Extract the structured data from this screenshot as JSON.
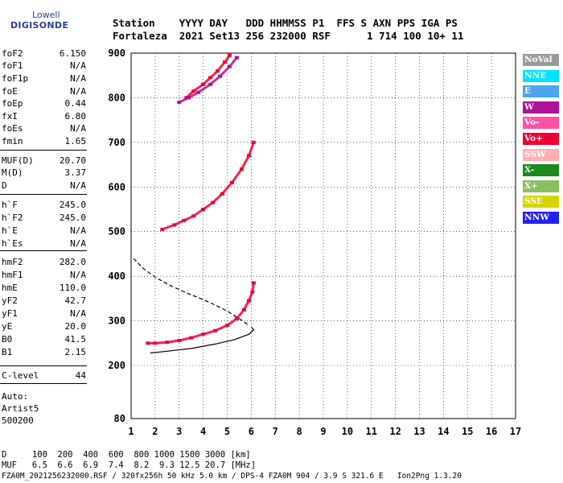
{
  "logo": {
    "line1": "Lowell",
    "line2": "DIGISONDE"
  },
  "header": {
    "keys": "Station    YYYY DAY   DDD HHMMSS P1  FFS S AXN PPS IGA PS",
    "values": "Fortaleza  2021 Set13 256 232000 RSF      1 714 100 10+ 11"
  },
  "params": [
    {
      "label": "foF2",
      "value": "6.150"
    },
    {
      "label": "foF1",
      "value": "N/A"
    },
    {
      "label": "foF1p",
      "value": "N/A"
    },
    {
      "label": "foE",
      "value": "N/A"
    },
    {
      "label": "foEp",
      "value": "0.44"
    },
    {
      "label": "fxI",
      "value": "6.80"
    },
    {
      "label": "foEs",
      "value": "N/A"
    },
    {
      "label": "fmin",
      "value": "1.65"
    },
    {
      "label": "MUF(D)",
      "value": "20.70"
    },
    {
      "label": "M(D)",
      "value": "3.37"
    },
    {
      "label": "D",
      "value": "N/A"
    },
    {
      "label": "h`F",
      "value": "245.0"
    },
    {
      "label": "h`F2",
      "value": "245.0"
    },
    {
      "label": "h`E",
      "value": "N/A"
    },
    {
      "label": "h`Es",
      "value": "N/A"
    },
    {
      "label": "hmF2",
      "value": "282.0"
    },
    {
      "label": "hmF1",
      "value": "N/A"
    },
    {
      "label": "hmE",
      "value": "110.0"
    },
    {
      "label": "yF2",
      "value": "42.7"
    },
    {
      "label": "yF1",
      "value": "N/A"
    },
    {
      "label": "yE",
      "value": "20.0"
    },
    {
      "label": "B0",
      "value": "41.5"
    },
    {
      "label": "B1",
      "value": "2.15"
    },
    {
      "label": "C-level",
      "value": "44"
    }
  ],
  "auto": {
    "line1": "Auto:",
    "line2": "Artist5",
    "line3": "500200"
  },
  "legend": [
    {
      "label": "NoVal",
      "color": "#9a9a9a",
      "text_color": "#ffffff"
    },
    {
      "label": "NNE",
      "color": "#00e5ff",
      "text_color": "#ffffff"
    },
    {
      "label": "E",
      "color": "#4aa6ee",
      "text_color": "#ffffff"
    },
    {
      "label": "W",
      "color": "#b0109a",
      "text_color": "#ffffff"
    },
    {
      "label": "Vo-",
      "color": "#ff4fa8",
      "text_color": "#ffffff"
    },
    {
      "label": "Vo+",
      "color": "#ee0033",
      "text_color": "#ffffff"
    },
    {
      "label": "SSW",
      "color": "#ffb0b0",
      "text_color": "#ffffff"
    },
    {
      "label": "X-",
      "color": "#1a8a1a",
      "text_color": "#ffffff"
    },
    {
      "label": "X+",
      "color": "#88c060",
      "text_color": "#ffffff"
    },
    {
      "label": "SSE",
      "color": "#d4d400",
      "text_color": "#ffffff"
    },
    {
      "label": "NNW",
      "color": "#2222ee",
      "text_color": "#ffffff"
    }
  ],
  "footer": {
    "distance": "D     100  200  400  600  800 1000 1500 3000 [km]",
    "muf": "MUF   6.5  6.6  6.9  7.4  8.2  9.3 12.5 20.7 [MHz]",
    "file": "FZA0M_2021256232000.RSF / 320fx256h 50 kHz 5.0 km / DPS-4 FZA0M 904 / 3.9 S 321.6 E   Ion2Png 1.3.20"
  },
  "chart_data": {
    "type": "scatter",
    "x_ticks": [
      "1",
      "2",
      "3",
      "4",
      "5",
      "6",
      "7",
      "8",
      "9",
      "10",
      "11",
      "12",
      "13",
      "14",
      "15",
      "16",
      "17"
    ],
    "y_ticks": [
      "80",
      "200",
      "300",
      "400",
      "500",
      "600",
      "700",
      "800",
      "900"
    ],
    "xlim": [
      1,
      17
    ],
    "ylim": [
      80,
      900
    ],
    "grid": true,
    "legend_position": "right",
    "series": [
      {
        "color": "#ee0033",
        "points": [
          [
            1.7,
            250
          ],
          [
            2,
            250
          ],
          [
            2.5,
            252
          ],
          [
            3,
            256
          ],
          [
            3.5,
            262
          ],
          [
            4,
            270
          ],
          [
            4.5,
            278
          ],
          [
            5,
            290
          ],
          [
            5.4,
            305
          ],
          [
            5.7,
            325
          ],
          [
            5.9,
            345
          ],
          [
            6.05,
            365
          ],
          [
            6.1,
            385
          ]
        ]
      },
      {
        "color": "#ee0033",
        "points": [
          [
            2.3,
            505
          ],
          [
            2.8,
            515
          ],
          [
            3.2,
            525
          ],
          [
            3.6,
            535
          ],
          [
            4,
            550
          ],
          [
            4.4,
            565
          ],
          [
            4.8,
            585
          ],
          [
            5.2,
            610
          ],
          [
            5.6,
            640
          ],
          [
            5.9,
            670
          ],
          [
            6.1,
            700
          ]
        ]
      },
      {
        "color": "#ee0033",
        "points": [
          [
            3.3,
            800
          ],
          [
            3.6,
            815
          ],
          [
            4,
            830
          ],
          [
            4.3,
            845
          ],
          [
            4.6,
            860
          ],
          [
            4.9,
            880
          ],
          [
            5.1,
            895
          ]
        ]
      },
      {
        "color": "#b0109a",
        "points": [
          [
            3,
            790
          ],
          [
            3.4,
            800
          ],
          [
            3.8,
            812
          ],
          [
            4.3,
            830
          ],
          [
            4.7,
            848
          ],
          [
            5.1,
            870
          ],
          [
            5.4,
            890
          ]
        ]
      }
    ],
    "curves": [
      {
        "style": "solid",
        "points": [
          [
            1.8,
            228
          ],
          [
            2.5,
            232
          ],
          [
            3.5,
            238
          ],
          [
            4.5,
            248
          ],
          [
            5.3,
            258
          ],
          [
            5.9,
            270
          ],
          [
            6.1,
            280
          ],
          [
            6.0,
            286
          ]
        ]
      },
      {
        "style": "dashed",
        "points": [
          [
            1.1,
            440
          ],
          [
            1.5,
            418
          ],
          [
            2,
            398
          ],
          [
            2.6,
            380
          ],
          [
            3.2,
            365
          ],
          [
            3.8,
            352
          ],
          [
            4.4,
            338
          ],
          [
            5,
            322
          ],
          [
            5.5,
            305
          ],
          [
            5.9,
            290
          ]
        ]
      }
    ]
  }
}
